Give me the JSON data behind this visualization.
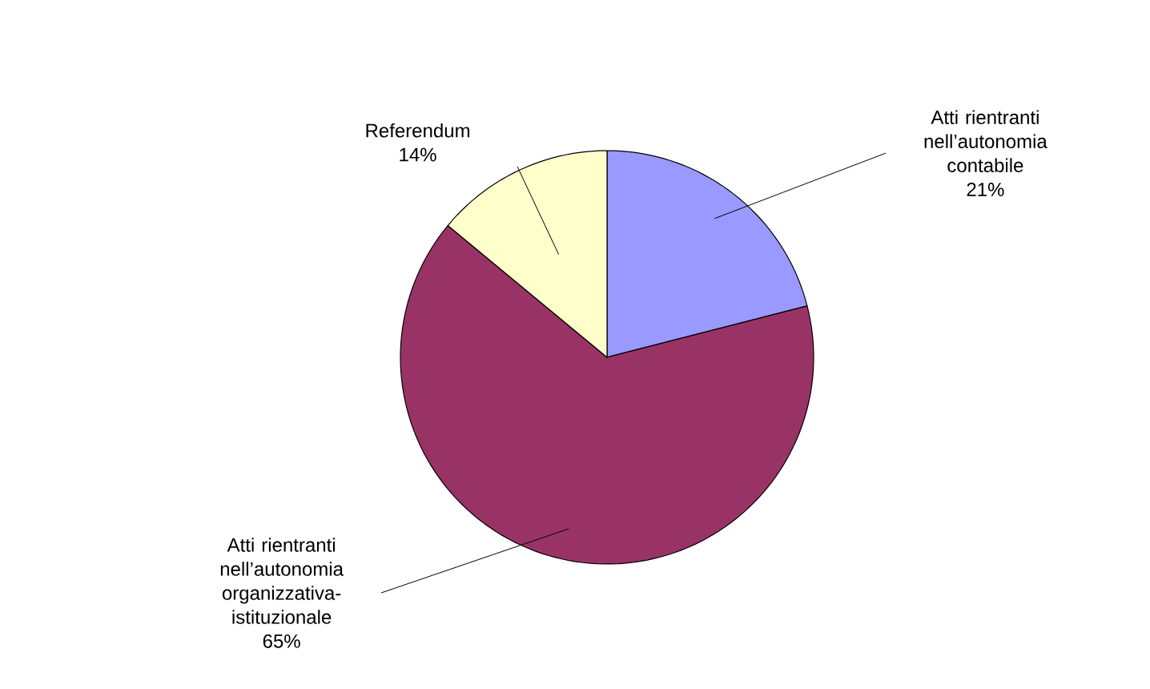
{
  "chart_data": {
    "type": "pie",
    "categories": [
      "Atti rientranti nell’autonomia contabile",
      "Atti rientranti nell’autonomia organizzativa-istituzionale",
      "Referendum"
    ],
    "values": [
      21,
      65,
      14
    ],
    "value_labels": [
      "21%",
      "65%",
      "14%"
    ],
    "colors": [
      "#9999ff",
      "#993366",
      "#ffffcc"
    ]
  }
}
